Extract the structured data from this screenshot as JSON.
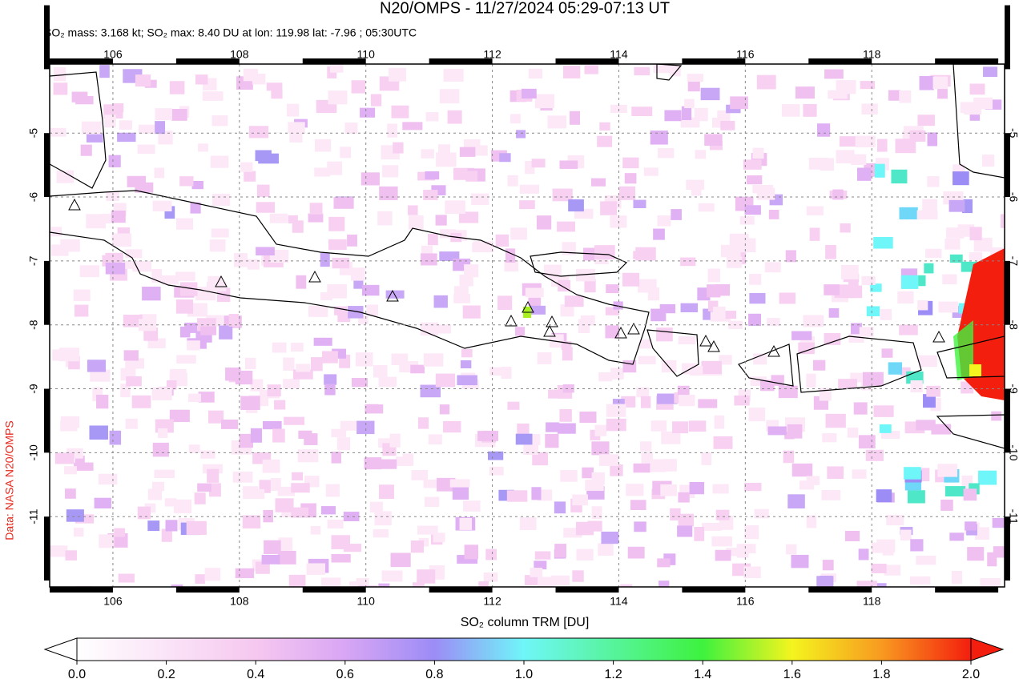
{
  "header": {
    "title": "N20/OMPS - 11/27/2024 05:29-07:13 UT",
    "subtitle": "SO₂ mass: 3.168 kt; SO₂ max: 8.40 DU at lon: 119.98 lat: -7.96 ; 05:30UTC"
  },
  "map": {
    "xlim": [
      105,
      120.1
    ],
    "ylim": [
      -12.1,
      -3.92
    ],
    "xticks": [
      106,
      108,
      110,
      112,
      114,
      116,
      118
    ],
    "yticks": [
      -5,
      -6,
      -7,
      -8,
      -9,
      -10,
      -11
    ],
    "grid": true
  },
  "colorbar": {
    "label": "SO₂ column TRM [DU]",
    "lim": [
      0,
      2
    ],
    "ticks": [
      {
        "value": 0,
        "label": "0.0"
      },
      {
        "value": 0.2,
        "label": "0.2"
      },
      {
        "value": 0.4,
        "label": "0.4"
      },
      {
        "value": 0.6,
        "label": "0.6"
      },
      {
        "value": 0.8,
        "label": "0.8"
      },
      {
        "value": 1,
        "label": "1.0"
      },
      {
        "value": 1.2,
        "label": "1.2"
      },
      {
        "value": 1.4,
        "label": "1.4"
      },
      {
        "value": 1.6,
        "label": "1.6"
      },
      {
        "value": 1.8,
        "label": "1.8"
      },
      {
        "value": 2,
        "label": "2.0"
      }
    ]
  },
  "credit": "Data: NASA N20/OMPS"
}
